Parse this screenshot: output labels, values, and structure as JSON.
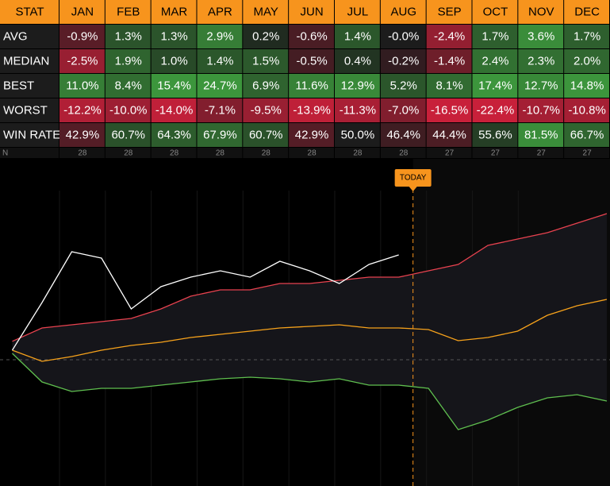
{
  "table": {
    "header": [
      "STAT",
      "JAN",
      "FEB",
      "MAR",
      "APR",
      "MAY",
      "JUN",
      "JUL",
      "AUG",
      "SEP",
      "OCT",
      "NOV",
      "DEC"
    ],
    "rows": [
      [
        "AVG",
        "-0.9%",
        "1.3%",
        "1.3%",
        "2.9%",
        "0.2%",
        "-0.6%",
        "1.4%",
        "-0.0%",
        "-2.4%",
        "1.7%",
        "3.6%",
        "1.7%"
      ],
      [
        "MEDIAN",
        "-2.5%",
        "1.9%",
        "1.0%",
        "1.4%",
        "1.5%",
        "-0.5%",
        "0.4%",
        "-0.2%",
        "-1.4%",
        "2.4%",
        "2.3%",
        "2.0%"
      ],
      [
        "BEST",
        "11.0%",
        "8.4%",
        "15.4%",
        "24.7%",
        "6.9%",
        "11.6%",
        "12.9%",
        "5.2%",
        "8.1%",
        "17.4%",
        "12.7%",
        "14.8%"
      ],
      [
        "WORST",
        "-12.2%",
        "-10.0%",
        "-14.0%",
        "-7.1%",
        "-9.5%",
        "-13.9%",
        "-11.3%",
        "-7.0%",
        "-16.5%",
        "-22.4%",
        "-10.7%",
        "-10.8%"
      ],
      [
        "WIN RATE",
        "42.9%",
        "60.7%",
        "64.3%",
        "67.9%",
        "60.7%",
        "42.9%",
        "50.0%",
        "46.4%",
        "44.4%",
        "55.6%",
        "81.5%",
        "66.7%"
      ]
    ],
    "n_row": [
      "N",
      "28",
      "28",
      "28",
      "28",
      "28",
      "28",
      "28",
      "28",
      "27",
      "27",
      "27",
      "27"
    ]
  },
  "chart_data": {
    "type": "line",
    "x": [
      0,
      5,
      10,
      15,
      20,
      25,
      30,
      35,
      40,
      45,
      50,
      55,
      60,
      65,
      70,
      75,
      80,
      85,
      90,
      95,
      100
    ],
    "xlim": [
      -1,
      100
    ],
    "ylim": [
      -39.75,
      63.25
    ],
    "zero_line": 0,
    "annotation": {
      "label": "TODAY",
      "x": 67.4
    },
    "series": [
      {
        "color": "#e8424f",
        "values": [
          5.8,
          10,
          11,
          12,
          13,
          16,
          20,
          22,
          22,
          24,
          24,
          25,
          26,
          26,
          28,
          30,
          36,
          38,
          40,
          43,
          46
        ]
      },
      {
        "color": "#f7a21b",
        "values": [
          3,
          -0.5,
          1,
          3,
          4.5,
          5.5,
          7,
          8,
          9,
          10,
          10.5,
          11,
          10,
          10,
          9.5,
          6,
          7,
          9,
          14,
          17,
          19
        ]
      },
      {
        "color": "#5fbf4f",
        "values": [
          2,
          -7,
          -10,
          -9,
          -9,
          -8,
          -7,
          -6,
          -5.5,
          -6,
          -7,
          -6,
          -8,
          -8,
          -9,
          -22,
          -19,
          -15,
          -12,
          -11,
          -13
        ]
      },
      {
        "color": "#ffffff",
        "values": [
          3,
          18,
          34,
          32,
          16,
          23,
          26,
          28,
          26,
          31,
          28,
          24,
          30,
          33,
          null,
          null,
          null,
          null,
          null,
          null,
          null
        ]
      }
    ]
  }
}
